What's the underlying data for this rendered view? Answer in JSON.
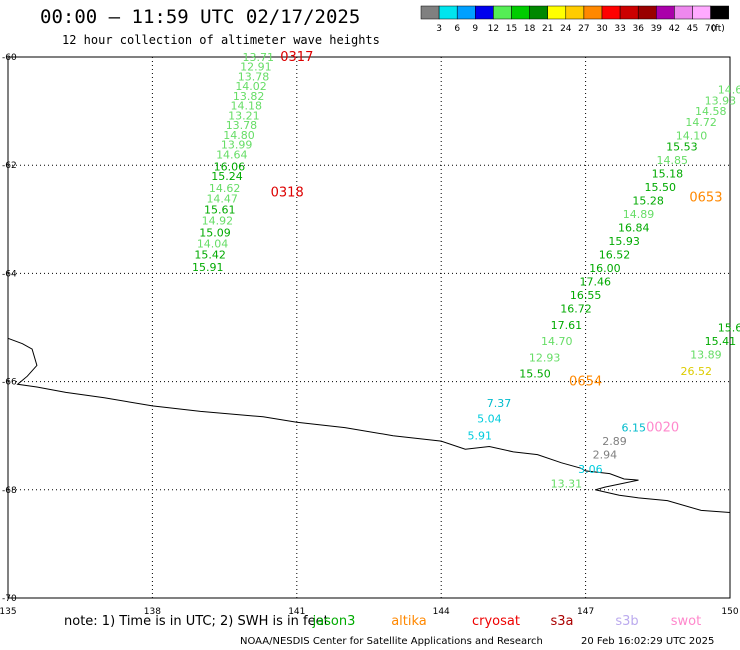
{
  "header": {
    "title": "00:00 – 11:59 UTC 02/17/2025",
    "subtitle": "12 hour collection of altimeter wave heights"
  },
  "legend": {
    "unit": "(ft)",
    "bins": [
      {
        "label": "3",
        "color": "#808080"
      },
      {
        "label": "6",
        "color": "#00e5ee"
      },
      {
        "label": "9",
        "color": "#00a0ff"
      },
      {
        "label": "12",
        "color": "#0000ee"
      },
      {
        "label": "15",
        "color": "#55ee55"
      },
      {
        "label": "18",
        "color": "#00cc00"
      },
      {
        "label": "21",
        "color": "#008800"
      },
      {
        "label": "24",
        "color": "#ffff00"
      },
      {
        "label": "27",
        "color": "#ffcc00"
      },
      {
        "label": "30",
        "color": "#ff8800"
      },
      {
        "label": "33",
        "color": "#ff0000"
      },
      {
        "label": "36",
        "color": "#cc0000"
      },
      {
        "label": "39",
        "color": "#990000"
      },
      {
        "label": "42",
        "color": "#aa00aa"
      },
      {
        "label": "45",
        "color": "#ee88ee"
      },
      {
        "label": "70",
        "color": "#ffaaff"
      },
      {
        "label": "",
        "color": "#000000"
      }
    ]
  },
  "map": {
    "lon_range": [
      135,
      150
    ],
    "lat_range": [
      -60,
      -70
    ],
    "lon_ticks": [
      "135",
      "138",
      "141",
      "144",
      "147",
      "150"
    ],
    "lat_ticks": [
      "-60",
      "-62",
      "-64",
      "-66",
      "-68",
      "-70"
    ],
    "coastline": [
      [
        135,
        -65.2
      ],
      [
        135.3,
        -65.3
      ],
      [
        135.5,
        -65.4
      ],
      [
        135.6,
        -65.7
      ],
      [
        135.4,
        -65.9
      ],
      [
        135.2,
        -66.05
      ],
      [
        135.6,
        -66.1
      ],
      [
        136.2,
        -66.2
      ],
      [
        137,
        -66.3
      ],
      [
        138,
        -66.45
      ],
      [
        139,
        -66.55
      ],
      [
        140.3,
        -66.65
      ],
      [
        141,
        -66.75
      ],
      [
        142,
        -66.85
      ],
      [
        143,
        -67.0
      ],
      [
        144,
        -67.1
      ],
      [
        144.5,
        -67.25
      ],
      [
        145,
        -67.2
      ],
      [
        145.5,
        -67.3
      ],
      [
        146,
        -67.35
      ],
      [
        146.5,
        -67.5
      ],
      [
        146.9,
        -67.6
      ],
      [
        147,
        -67.65
      ],
      [
        147.5,
        -67.7
      ],
      [
        147.8,
        -67.8
      ],
      [
        148.1,
        -67.82
      ],
      [
        147.4,
        -67.95
      ],
      [
        147.2,
        -68.0
      ],
      [
        147.7,
        -68.1
      ],
      [
        148.1,
        -68.15
      ],
      [
        148.7,
        -68.2
      ],
      [
        149.4,
        -68.38
      ],
      [
        150,
        -68.42
      ]
    ],
    "passes": [
      {
        "id": "0317",
        "id_color": "#dd0000",
        "id_pos": [
          141.0,
          -60.0
        ],
        "points": [
          {
            "lon": 140.2,
            "lat": -60.0,
            "v": "13.71",
            "c": "#66dd66"
          },
          {
            "lon": 140.15,
            "lat": -60.18,
            "v": "12.91",
            "c": "#66dd66"
          },
          {
            "lon": 140.1,
            "lat": -60.36,
            "v": "13.78",
            "c": "#66dd66"
          },
          {
            "lon": 140.05,
            "lat": -60.54,
            "v": "14.02",
            "c": "#66dd66"
          },
          {
            "lon": 140.0,
            "lat": -60.72,
            "v": "13.82",
            "c": "#66dd66"
          },
          {
            "lon": 139.95,
            "lat": -60.9,
            "v": "14.18",
            "c": "#66dd66"
          },
          {
            "lon": 139.9,
            "lat": -61.08,
            "v": "13.21",
            "c": "#66dd66"
          },
          {
            "lon": 139.85,
            "lat": -61.26,
            "v": "13.78",
            "c": "#66dd66"
          },
          {
            "lon": 139.8,
            "lat": -61.44,
            "v": "14.80",
            "c": "#66dd66"
          },
          {
            "lon": 139.75,
            "lat": -61.62,
            "v": "13.99",
            "c": "#66dd66"
          },
          {
            "lon": 139.65,
            "lat": -61.8,
            "v": "14.64",
            "c": "#66dd66"
          }
        ]
      },
      {
        "id": "0318",
        "id_color": "#dd0000",
        "id_pos": [
          140.8,
          -62.5
        ],
        "points": [
          {
            "lon": 139.6,
            "lat": -62.02,
            "v": "16.06",
            "c": "#00aa00"
          },
          {
            "lon": 139.55,
            "lat": -62.2,
            "v": "15.24",
            "c": "#00aa00"
          },
          {
            "lon": 139.5,
            "lat": -62.42,
            "v": "14.62",
            "c": "#66dd66"
          },
          {
            "lon": 139.45,
            "lat": -62.62,
            "v": "14.47",
            "c": "#66dd66"
          },
          {
            "lon": 139.4,
            "lat": -62.82,
            "v": "15.61",
            "c": "#00aa00"
          },
          {
            "lon": 139.35,
            "lat": -63.02,
            "v": "14.92",
            "c": "#66dd66"
          },
          {
            "lon": 139.3,
            "lat": -63.24,
            "v": "15.09",
            "c": "#00aa00"
          },
          {
            "lon": 139.25,
            "lat": -63.45,
            "v": "14.04",
            "c": "#66dd66"
          },
          {
            "lon": 139.2,
            "lat": -63.65,
            "v": "15.42",
            "c": "#00aa00"
          },
          {
            "lon": 139.15,
            "lat": -63.88,
            "v": "15.91",
            "c": "#00aa00"
          }
        ]
      },
      {
        "id": "0653",
        "id_color": "#ff8800",
        "id_pos": [
          149.5,
          -62.6
        ],
        "points": [
          {
            "lon": 150.0,
            "lat": -60.6,
            "v": "14.6",
            "c": "#66dd66"
          },
          {
            "lon": 149.8,
            "lat": -60.8,
            "v": "13.93",
            "c": "#66dd66"
          },
          {
            "lon": 149.6,
            "lat": -61.0,
            "v": "14.58",
            "c": "#66dd66"
          },
          {
            "lon": 149.4,
            "lat": -61.2,
            "v": "14.72",
            "c": "#66dd66"
          },
          {
            "lon": 149.2,
            "lat": -61.45,
            "v": "14.10",
            "c": "#66dd66"
          },
          {
            "lon": 149.0,
            "lat": -61.65,
            "v": "15.53",
            "c": "#00aa00"
          },
          {
            "lon": 148.8,
            "lat": -61.9,
            "v": "14.85",
            "c": "#66dd66"
          },
          {
            "lon": 148.7,
            "lat": -62.15,
            "v": "15.18",
            "c": "#00aa00"
          },
          {
            "lon": 148.55,
            "lat": -62.4,
            "v": "15.50",
            "c": "#00aa00"
          },
          {
            "lon": 148.3,
            "lat": -62.65,
            "v": "15.28",
            "c": "#00aa00"
          },
          {
            "lon": 148.1,
            "lat": -62.9,
            "v": "14.89",
            "c": "#66dd66"
          },
          {
            "lon": 148.0,
            "lat": -63.15,
            "v": "16.84",
            "c": "#00aa00"
          },
          {
            "lon": 147.8,
            "lat": -63.4,
            "v": "15.93",
            "c": "#00aa00"
          },
          {
            "lon": 147.6,
            "lat": -63.65,
            "v": "16.52",
            "c": "#00aa00"
          },
          {
            "lon": 147.4,
            "lat": -63.9,
            "v": "16.00",
            "c": "#00aa00"
          },
          {
            "lon": 147.2,
            "lat": -64.15,
            "v": "17.46",
            "c": "#00aa00"
          }
        ]
      },
      {
        "id": "0654",
        "id_color": "#ff8800",
        "id_pos": [
          147.0,
          -66.0
        ],
        "points": [
          {
            "lon": 147.0,
            "lat": -64.4,
            "v": "16.55",
            "c": "#00aa00"
          },
          {
            "lon": 146.8,
            "lat": -64.65,
            "v": "16.72",
            "c": "#00aa00"
          },
          {
            "lon": 146.6,
            "lat": -64.95,
            "v": "17.61",
            "c": "#00aa00"
          },
          {
            "lon": 146.4,
            "lat": -65.25,
            "v": "14.70",
            "c": "#66dd66"
          },
          {
            "lon": 146.15,
            "lat": -65.55,
            "v": "12.93",
            "c": "#66dd66"
          },
          {
            "lon": 145.95,
            "lat": -65.85,
            "v": "15.50",
            "c": "#00aa00"
          }
        ]
      },
      {
        "id": "0020",
        "id_color": "#ff88cc",
        "id_pos": [
          148.6,
          -66.85
        ],
        "points": [
          {
            "lon": 148.0,
            "lat": -66.85,
            "v": "6.15",
            "c": "#00bbcc"
          },
          {
            "lon": 147.6,
            "lat": -67.1,
            "v": "2.89",
            "c": "#808080"
          },
          {
            "lon": 147.4,
            "lat": -67.35,
            "v": "2.94",
            "c": "#808080"
          },
          {
            "lon": 147.1,
            "lat": -67.62,
            "v": "3.06",
            "c": "#00ccdd"
          },
          {
            "lon": 146.6,
            "lat": -67.88,
            "v": "13.31",
            "c": "#66dd66"
          }
        ]
      },
      {
        "id": "",
        "id_color": "#000000",
        "id_pos": [
          145.0,
          -66.4
        ],
        "points": [
          {
            "lon": 145.2,
            "lat": -66.4,
            "v": "7.37",
            "c": "#00bbcc"
          },
          {
            "lon": 145.0,
            "lat": -66.68,
            "v": "5.04",
            "c": "#00ccdd"
          },
          {
            "lon": 144.8,
            "lat": -67.0,
            "v": "5.91",
            "c": "#00ccdd"
          }
        ]
      },
      {
        "id": "",
        "id_color": "#000000",
        "id_pos": [
          150.0,
          -65.0
        ],
        "points": [
          {
            "lon": 150.0,
            "lat": -65.0,
            "v": "15.6",
            "c": "#00aa00"
          },
          {
            "lon": 149.8,
            "lat": -65.25,
            "v": "15.41",
            "c": "#00aa00"
          },
          {
            "lon": 149.5,
            "lat": -65.5,
            "v": "13.89",
            "c": "#66dd66"
          },
          {
            "lon": 149.3,
            "lat": -65.8,
            "v": "26.52",
            "c": "#ddcc00"
          }
        ]
      }
    ]
  },
  "footer": {
    "note": "note: 1) Time is in UTC; 2) SWH is in feet",
    "satellites": [
      {
        "label": "jason3",
        "color": "#00aa00"
      },
      {
        "label": "altika",
        "color": "#ff8800"
      },
      {
        "label": "cryosat",
        "color": "#ee0000"
      },
      {
        "label": "s3a",
        "color": "#aa0000"
      },
      {
        "label": "s3b",
        "color": "#bbaaee"
      },
      {
        "label": "swot",
        "color": "#ff88cc"
      }
    ],
    "credit": "NOAA/NESDIS Center for Satellite Applications and Research",
    "timestamp": "20 Feb 16:02:29 UTC 2025"
  }
}
